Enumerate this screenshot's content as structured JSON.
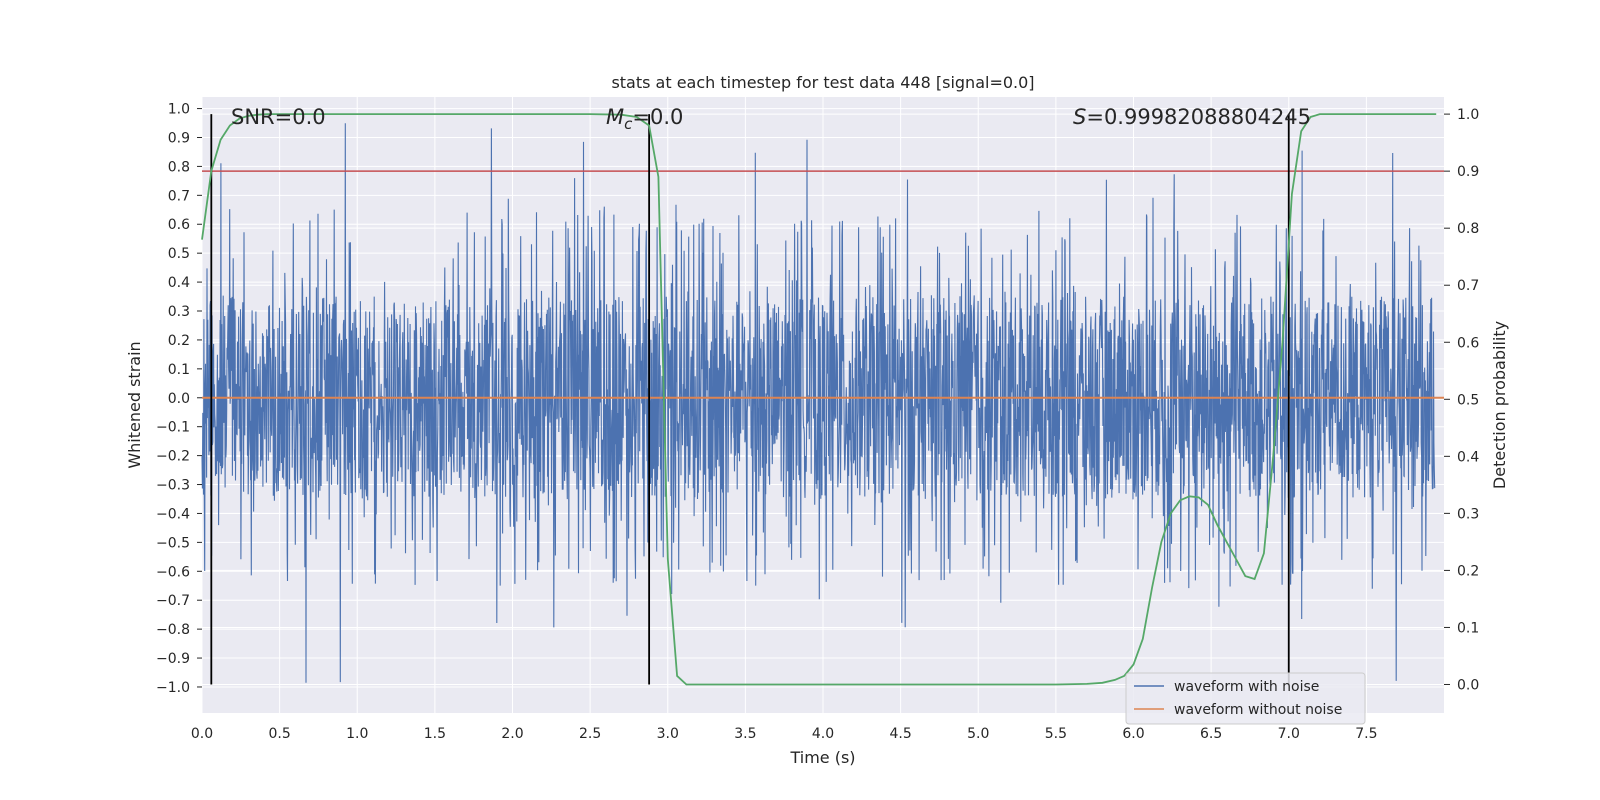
{
  "chart_data": {
    "type": "line",
    "title": "stats at each timestep for test data 448 [signal=0.0]",
    "xlabel": "Time (s)",
    "ylabel_left": "Whitened strain",
    "ylabel_right": "Detection probability",
    "xlim": [
      0.0,
      8.0
    ],
    "ylim_left": [
      -1.09,
      1.04
    ],
    "ylim_right": [
      -0.05,
      1.03
    ],
    "x_ticks": [
      0.0,
      0.5,
      1.0,
      1.5,
      2.0,
      2.5,
      3.0,
      3.5,
      4.0,
      4.5,
      5.0,
      5.5,
      6.0,
      6.5,
      7.0,
      7.5
    ],
    "x_tick_labels": [
      "0.0",
      "0.5",
      "1.0",
      "1.5",
      "2.0",
      "2.5",
      "3.0",
      "3.5",
      "4.0",
      "4.5",
      "5.0",
      "5.5",
      "6.0",
      "6.5",
      "7.0",
      "7.5"
    ],
    "y_left_ticks": [
      1.0,
      0.9,
      0.8,
      0.7,
      0.6,
      0.5,
      0.4,
      0.3,
      0.2,
      0.1,
      0.0,
      -0.1,
      -0.2,
      -0.3,
      -0.4,
      -0.5,
      -0.6,
      -0.7,
      -0.8,
      -0.9,
      -1.0
    ],
    "y_left_tick_labels": [
      "1.0",
      "0.9",
      "0.8",
      "0.7",
      "0.6",
      "0.5",
      "0.4",
      "0.3",
      "0.2",
      "0.1",
      "0.0",
      "−0.1",
      "−0.2",
      "−0.3",
      "−0.4",
      "−0.5",
      "−0.6",
      "−0.7",
      "−0.8",
      "−0.9",
      "−1.0"
    ],
    "y_right_ticks": [
      1.0,
      0.9,
      0.8,
      0.7,
      0.6,
      0.5,
      0.4,
      0.3,
      0.2,
      0.1,
      0.0
    ],
    "y_right_tick_labels": [
      "1.0",
      "0.9",
      "0.8",
      "0.7",
      "0.6",
      "0.5",
      "0.4",
      "0.3",
      "0.2",
      "0.1",
      "0.0"
    ],
    "annotations": {
      "snr": "SNR=0.0",
      "mc_symbol": "M",
      "mc_sub": "c",
      "mc_value": "=0.0",
      "s_symbol": "S",
      "s_value": "=0.99982088804245"
    },
    "vertical_lines_x": [
      0.06,
      2.88,
      7.0
    ],
    "threshold_probability": 0.9,
    "noise_band": {
      "core_amplitude": 0.35,
      "typical_peak": 0.55,
      "max_peak": 0.95,
      "min_trough": -1.0
    },
    "series": [
      {
        "name": "waveform with noise",
        "color": "#4c72b0",
        "axis": "left"
      },
      {
        "name": "waveform without noise",
        "color": "#dd8452",
        "axis": "left",
        "constant": 0.0
      },
      {
        "name": "detection probability",
        "color": "#55a868",
        "axis": "right",
        "x": [
          0.0,
          0.06,
          0.12,
          0.18,
          0.24,
          0.3,
          0.36,
          0.42,
          0.6,
          1.0,
          1.5,
          2.0,
          2.5,
          2.7,
          2.8,
          2.88,
          2.94,
          3.0,
          3.06,
          3.12,
          3.3,
          4.0,
          5.0,
          5.5,
          5.7,
          5.8,
          5.88,
          5.94,
          6.0,
          6.06,
          6.12,
          6.18,
          6.24,
          6.3,
          6.36,
          6.42,
          6.48,
          6.54,
          6.6,
          6.66,
          6.72,
          6.78,
          6.84,
          6.9,
          6.96,
          7.02,
          7.08,
          7.14,
          7.2,
          7.5,
          7.8,
          7.95
        ],
        "values": [
          0.78,
          0.9,
          0.955,
          0.98,
          0.992,
          0.997,
          0.999,
          1.0,
          1.0,
          1.0,
          1.0,
          1.0,
          1.0,
          0.999,
          0.995,
          0.98,
          0.89,
          0.22,
          0.015,
          0.0,
          0.0,
          0.0,
          0.0,
          0.0,
          0.001,
          0.003,
          0.008,
          0.015,
          0.035,
          0.08,
          0.17,
          0.25,
          0.3,
          0.323,
          0.33,
          0.328,
          0.315,
          0.28,
          0.25,
          0.22,
          0.19,
          0.185,
          0.23,
          0.4,
          0.6,
          0.86,
          0.97,
          0.995,
          1.0,
          1.0,
          1.0,
          1.0
        ]
      }
    ],
    "legend": {
      "position": "lower-right",
      "entries": [
        "waveform with noise",
        "waveform without noise"
      ]
    },
    "grid": true,
    "colors": {
      "background": "#eaeaf2",
      "grid": "#ffffff",
      "threshold": "#c44e52",
      "vline": "#000000"
    }
  }
}
